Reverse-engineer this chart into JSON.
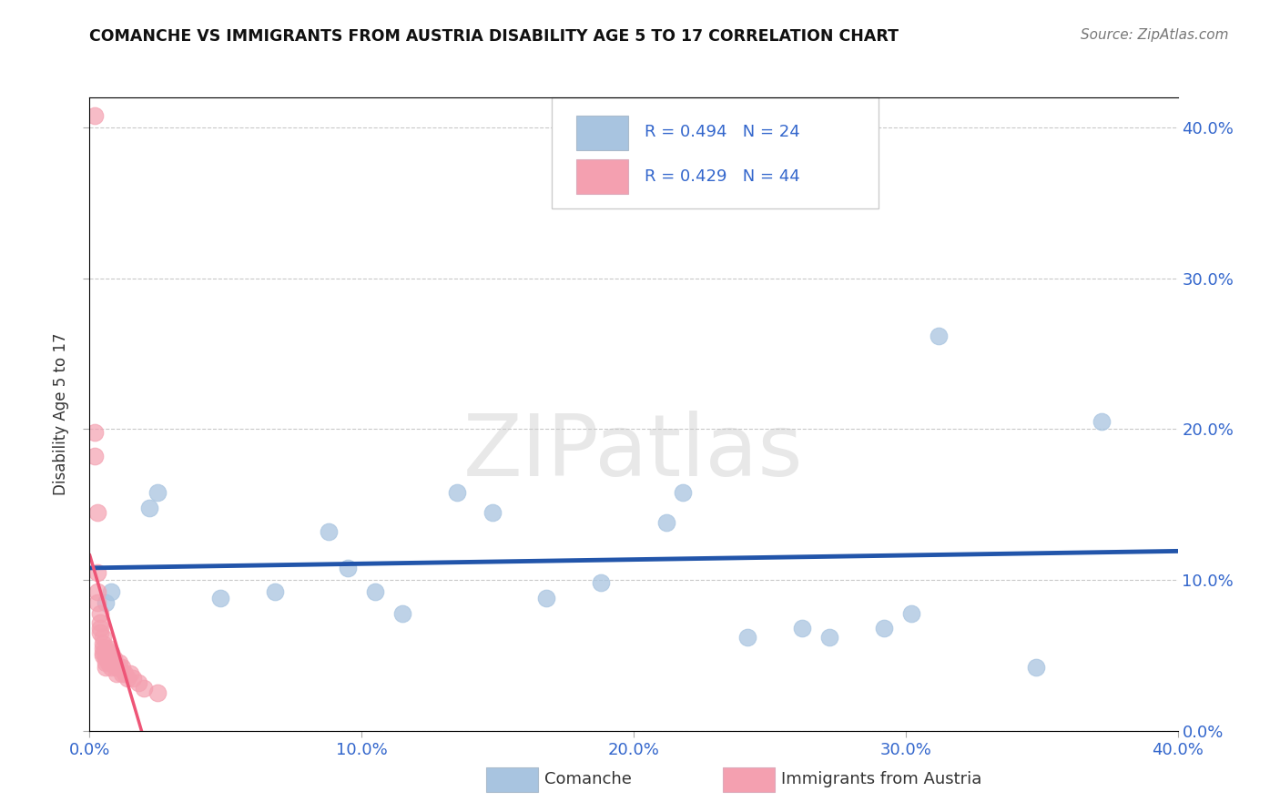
{
  "title": "COMANCHE VS IMMIGRANTS FROM AUSTRIA DISABILITY AGE 5 TO 17 CORRELATION CHART",
  "source": "Source: ZipAtlas.com",
  "ylabel": "Disability Age 5 to 17",
  "legend_labels": [
    "Comanche",
    "Immigrants from Austria"
  ],
  "legend_r": [
    "R = 0.494",
    "R = 0.429"
  ],
  "legend_n": [
    "N = 24",
    "N = 44"
  ],
  "blue_color": "#A8C4E0",
  "pink_color": "#F4A0B0",
  "blue_line_color": "#2255AA",
  "pink_line_color": "#EE5577",
  "pink_dash_color": "#F0A8B8",
  "blue_scatter": [
    [
      0.006,
      0.085
    ],
    [
      0.008,
      0.092
    ],
    [
      0.022,
      0.148
    ],
    [
      0.025,
      0.158
    ],
    [
      0.048,
      0.088
    ],
    [
      0.068,
      0.092
    ],
    [
      0.088,
      0.132
    ],
    [
      0.095,
      0.108
    ],
    [
      0.105,
      0.092
    ],
    [
      0.115,
      0.078
    ],
    [
      0.135,
      0.158
    ],
    [
      0.148,
      0.145
    ],
    [
      0.168,
      0.088
    ],
    [
      0.188,
      0.098
    ],
    [
      0.212,
      0.138
    ],
    [
      0.218,
      0.158
    ],
    [
      0.242,
      0.062
    ],
    [
      0.262,
      0.068
    ],
    [
      0.272,
      0.062
    ],
    [
      0.292,
      0.068
    ],
    [
      0.302,
      0.078
    ],
    [
      0.312,
      0.262
    ],
    [
      0.348,
      0.042
    ],
    [
      0.372,
      0.205
    ]
  ],
  "pink_scatter": [
    [
      0.002,
      0.408
    ],
    [
      0.002,
      0.198
    ],
    [
      0.002,
      0.182
    ],
    [
      0.003,
      0.145
    ],
    [
      0.003,
      0.105
    ],
    [
      0.003,
      0.092
    ],
    [
      0.003,
      0.085
    ],
    [
      0.004,
      0.078
    ],
    [
      0.004,
      0.072
    ],
    [
      0.004,
      0.068
    ],
    [
      0.004,
      0.065
    ],
    [
      0.005,
      0.062
    ],
    [
      0.005,
      0.058
    ],
    [
      0.005,
      0.055
    ],
    [
      0.005,
      0.052
    ],
    [
      0.005,
      0.05
    ],
    [
      0.006,
      0.055
    ],
    [
      0.006,
      0.052
    ],
    [
      0.006,
      0.048
    ],
    [
      0.006,
      0.045
    ],
    [
      0.006,
      0.042
    ],
    [
      0.007,
      0.055
    ],
    [
      0.007,
      0.052
    ],
    [
      0.007,
      0.048
    ],
    [
      0.007,
      0.045
    ],
    [
      0.008,
      0.052
    ],
    [
      0.008,
      0.048
    ],
    [
      0.008,
      0.045
    ],
    [
      0.008,
      0.042
    ],
    [
      0.009,
      0.048
    ],
    [
      0.009,
      0.045
    ],
    [
      0.01,
      0.042
    ],
    [
      0.01,
      0.038
    ],
    [
      0.011,
      0.045
    ],
    [
      0.011,
      0.042
    ],
    [
      0.012,
      0.042
    ],
    [
      0.012,
      0.038
    ],
    [
      0.013,
      0.038
    ],
    [
      0.014,
      0.035
    ],
    [
      0.015,
      0.038
    ],
    [
      0.016,
      0.035
    ],
    [
      0.018,
      0.032
    ],
    [
      0.02,
      0.028
    ],
    [
      0.025,
      0.025
    ]
  ],
  "xlim": [
    0.0,
    0.4
  ],
  "ylim": [
    0.0,
    0.42
  ],
  "x_ticks": [
    0.0,
    0.1,
    0.2,
    0.3,
    0.4
  ],
  "y_ticks": [
    0.0,
    0.1,
    0.2,
    0.3,
    0.4
  ],
  "watermark_text": "ZIPatlas",
  "background_color": "#FFFFFF",
  "grid_color": "#BBBBBB"
}
